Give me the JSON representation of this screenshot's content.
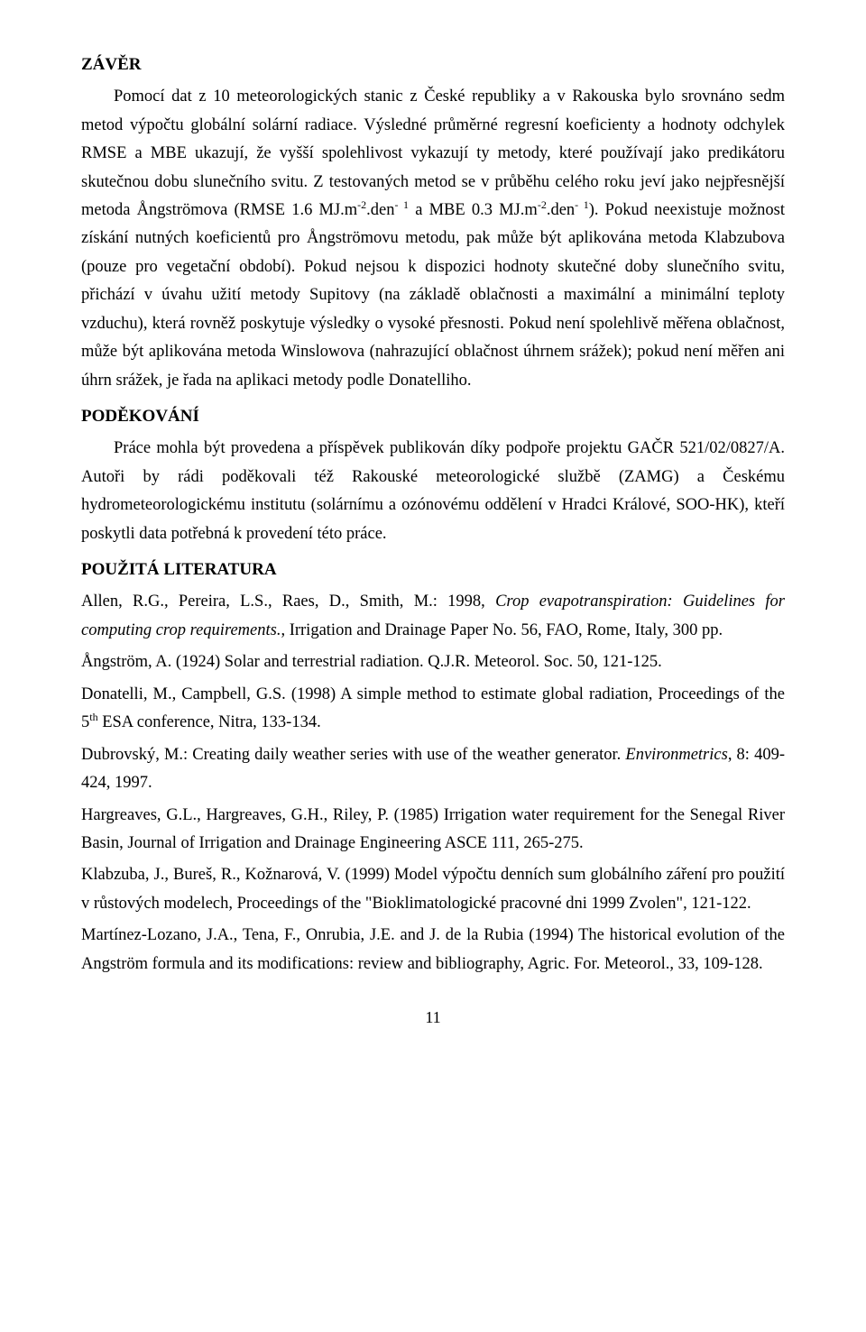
{
  "section_zaver": {
    "heading": "ZÁVĚR",
    "p1_a": "Pomocí dat z 10 meteorologických stanic z České republiky a v Rakouska bylo srovnáno sedm metod výpočtu globální solární radiace. Výsledné průměrné regresní koeficienty a hodnoty odchylek RMSE a MBE ukazují, že vyšší spolehlivost vykazují ty metody, které používají jako predikátoru skutečnou dobu slunečního svitu. Z testovaných metod se v průběhu celého roku jeví jako nejpřesnější metoda Ångströmova (RMSE 1.6 MJ.m",
    "p1_b": ".den",
    "p1_c": " a MBE 0.3 MJ.m",
    "p1_d": ".den",
    "p1_e": "). Pokud neexistuje možnost získání nutných koeficientů pro Ångströmovu metodu, pak může být aplikována metoda Klabzubova (pouze pro vegetační období). Pokud nejsou k dispozici hodnoty skutečné doby slunečního svitu, přichází v úvahu užití metody Supitovy (na základě oblačnosti a maximální a minimální teploty vzduchu), která rovněž poskytuje výsledky o vysoké přesnosti. Pokud není spolehlivě měřena oblačnost, může být aplikována metoda Winslowova (nahrazující oblačnost úhrnem srážek); pokud není měřen ani úhrn srážek, je řada na aplikaci metody podle Donatelliho.",
    "sup_m2": "-2",
    "sup_d1": "- 1"
  },
  "section_podekovani": {
    "heading": "PODĚKOVÁNÍ",
    "p1": "Práce mohla být provedena a příspěvek publikován díky podpoře projektu GAČR 521/02/0827/A. Autoři by rádi poděkovali též Rakouské meteorologické službě (ZAMG) a Českému hydrometeorologickému institutu (solárnímu a ozónovému oddělení v Hradci Králové, SOO-HK), kteří poskytli data potřebná k provedení této práce."
  },
  "section_lit": {
    "heading": "POUŽITÁ LITERATURA",
    "r1_a": "Allen, R.G., Pereira, L.S., Raes, D., Smith, M.: 1998, ",
    "r1_i": "Crop evapotranspiration: Guidelines for computing crop requirements.",
    "r1_b": ", Irrigation and Drainage Paper No. 56, FAO, Rome, Italy, 300 pp.",
    "r2": "Ångström, A. (1924) Solar and terrestrial radiation. Q.J.R. Meteorol. Soc. 50, 121-125.",
    "r3_a": "Donatelli, M., Campbell, G.S. (1998) A simple method to estimate global radiation, Proceedings of the 5",
    "r3_sup": "th",
    "r3_b": " ESA conference, Nitra, 133-134.",
    "r4_a": "Dubrovský, M.: Creating daily weather series with use of the weather generator. ",
    "r4_i": "Environmetrics",
    "r4_b": ", 8: 409-424, 1997.",
    "r5": "Hargreaves, G.L., Hargreaves, G.H., Riley, P. (1985) Irrigation water requirement for the Senegal River Basin, Journal of Irrigation and Drainage Engineering ASCE 111, 265-275.",
    "r6": "Klabzuba, J., Bureš, R., Kožnarová, V. (1999) Model výpočtu denních sum globálního záření pro použití v růstových modelech, Proceedings of the \"Bioklimatologické pracovné dni 1999 Zvolen\", 121-122.",
    "r7": "Martínez-Lozano, J.A., Tena, F., Onrubia, J.E. and J. de la Rubia (1994) The historical evolution of the Angström formula and its modifications: review and bibliography, Agric. For. Meteorol., 33, 109-128."
  },
  "page_number": "11"
}
